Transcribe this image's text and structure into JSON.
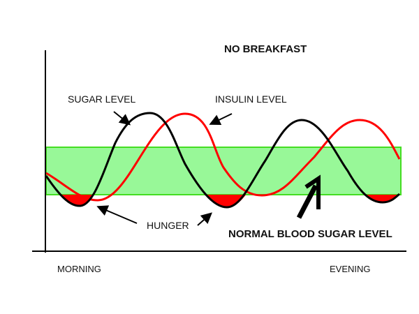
{
  "title": "NO BREAKFAST",
  "labels": {
    "sugar": "SUGAR LEVEL",
    "insulin": "INSULIN LEVEL",
    "hunger": "HUNGER",
    "normal": "NORMAL BLOOD SUGAR LEVEL",
    "morning": "MORNING",
    "evening": "EVENING"
  },
  "colors": {
    "sugar": "#000000",
    "insulin": "#ff0000",
    "band": "#98f898",
    "band_edge": "#44dd22",
    "hunger": "#ff0000"
  }
}
